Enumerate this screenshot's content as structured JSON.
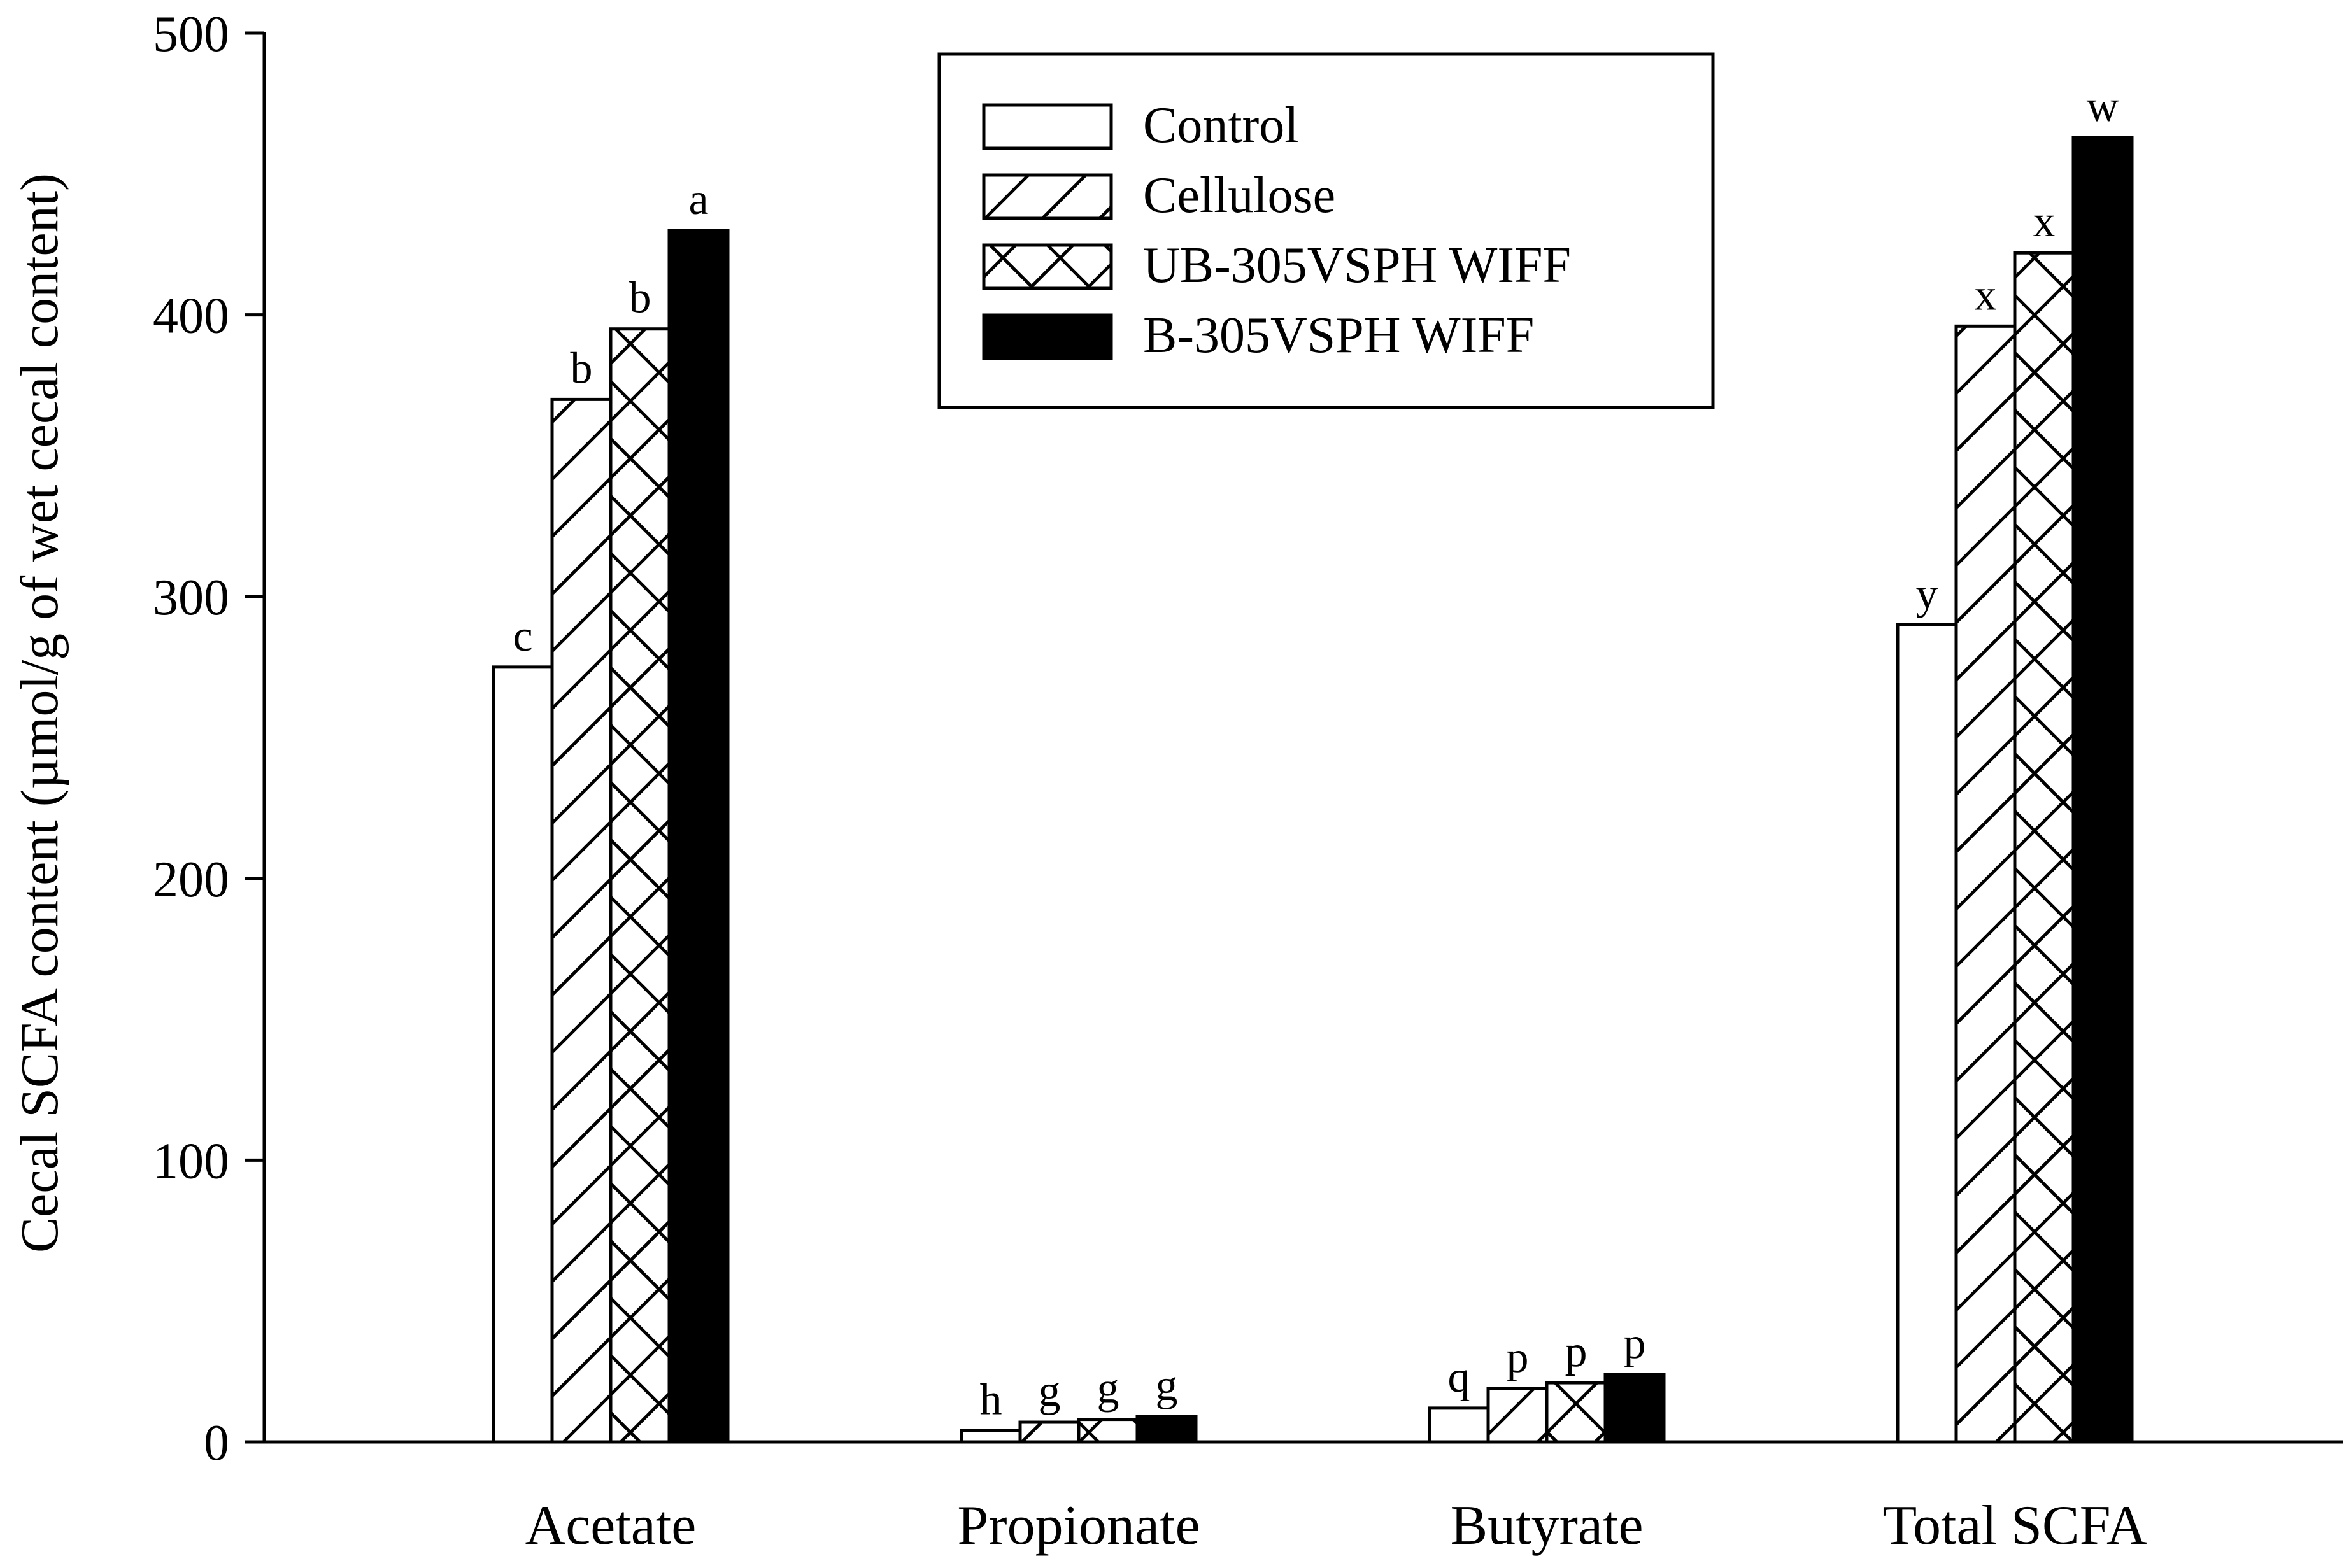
{
  "chart_data": {
    "type": "bar",
    "ylabel": "Cecal SCFA content (µmol/g of wet cecal content)",
    "xlabel": "",
    "ylim": [
      0,
      500
    ],
    "yticks": [
      "0",
      "100",
      "200",
      "300",
      "400",
      "500"
    ],
    "categories": [
      "Acetate",
      "Propionate",
      "Butyrate",
      "Total SCFA"
    ],
    "series": [
      {
        "name": "Control",
        "fill": "white",
        "values": [
          275,
          4,
          12,
          290
        ],
        "labels": [
          "c",
          "h",
          "q",
          "y"
        ]
      },
      {
        "name": "Cellulose",
        "fill": "diagonal",
        "values": [
          370,
          7,
          19,
          396
        ],
        "labels": [
          "b",
          "g",
          "p",
          "x"
        ]
      },
      {
        "name": "UB-305VSPH WIFF",
        "fill": "crosshatch",
        "values": [
          395,
          8,
          21,
          422
        ],
        "labels": [
          "b",
          "g",
          "p",
          "x"
        ]
      },
      {
        "name": "B-305VSPH WIFF",
        "fill": "black",
        "values": [
          430,
          9,
          24,
          463
        ],
        "labels": [
          "a",
          "g",
          "p",
          "w"
        ]
      }
    ],
    "legend": "top-center",
    "grid": false
  }
}
